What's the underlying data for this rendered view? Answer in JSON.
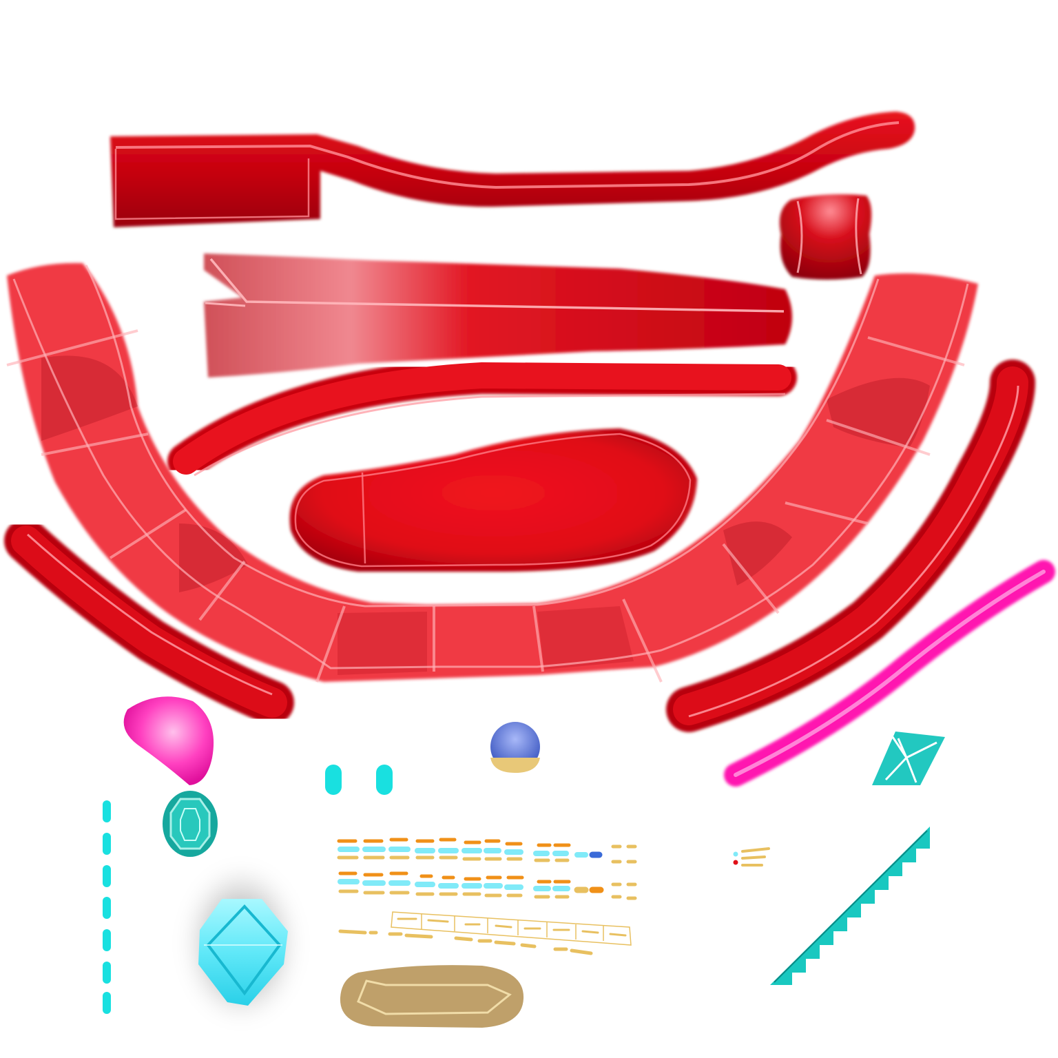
{
  "atlas": {
    "background": "#ffffff",
    "colors": {
      "red_main": "#e0101a",
      "red_dark": "#b0000c",
      "red_light": "#f4303c",
      "red_highlight": "#ff9aa0",
      "pink": "#ff1cb0",
      "pink_light": "#ff90dc",
      "cyan": "#19e0e0",
      "teal": "#1bb0a8",
      "gold": "#e8c060",
      "orange": "#f09018",
      "sky": "#80eaf8",
      "tan": "#c0a270",
      "blue": "#5a78d8",
      "ruby": "#e01018"
    },
    "icons": [
      "red-body-panel",
      "red-tube",
      "red-block",
      "pink-gem",
      "teal-octagon-gem",
      "cyan-diamond-crystal",
      "blue-orb",
      "teal-star-diamond",
      "tan-plate",
      "cyan-sawtooth",
      "cyan-dashed-line"
    ],
    "dash_rows": 3
  }
}
